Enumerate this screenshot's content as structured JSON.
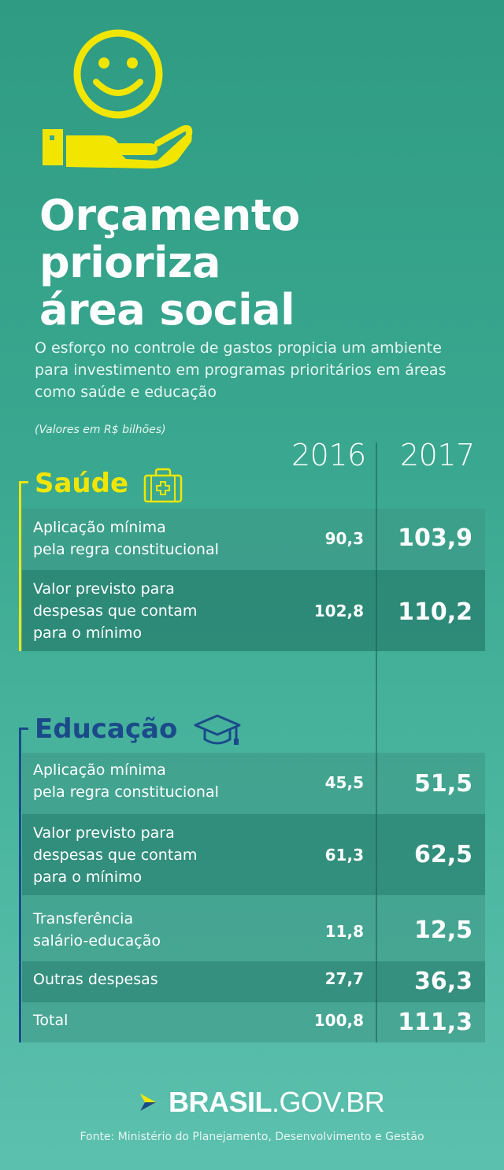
{
  "header": {
    "icon": "smiley-hand-icon",
    "title_lines": [
      "Orçamento",
      "prioriza",
      "área social"
    ],
    "subtitle": "O esforço no controle de gastos propicia um ambiente para investimento em programas prioritários em áreas como saúde e educação",
    "unit_note": "(Valores em R$ bilhões)"
  },
  "columns": {
    "year_a": "2016",
    "year_b": "2017"
  },
  "colors": {
    "saude": "#f2e600",
    "educacao": "#1b4a8a",
    "background": "#3aa890"
  },
  "saude": {
    "title": "Saúde",
    "icon": "first-aid-kit-icon",
    "rows": [
      {
        "label_lines": [
          "Aplicação mínima",
          "pela regra constitucional"
        ],
        "v2016": "90,3",
        "v2017": "103,9"
      },
      {
        "label_lines": [
          "Valor previsto para",
          "despesas que contam",
          "para o mínimo"
        ],
        "v2016": "102,8",
        "v2017": "110,2"
      }
    ]
  },
  "educacao": {
    "title": "Educação",
    "icon": "graduation-cap-icon",
    "rows": [
      {
        "label_lines": [
          "Aplicação mínima",
          "pela regra constitucional"
        ],
        "v2016": "45,5",
        "v2017": "51,5"
      },
      {
        "label_lines": [
          "Valor previsto para",
          "despesas que contam",
          "para o mínimo"
        ],
        "v2016": "61,3",
        "v2017": "62,5"
      },
      {
        "label_lines": [
          "Transferência",
          "salário-educação"
        ],
        "v2016": "11,8",
        "v2017": "12,5"
      },
      {
        "label_lines": [
          "Outras despesas"
        ],
        "v2016": "27,7",
        "v2017": "36,3"
      },
      {
        "label_lines": [
          "Total"
        ],
        "v2016": "100,8",
        "v2017": "111,3"
      }
    ]
  },
  "footer": {
    "logo_bold": "BRASIL",
    "logo_rest": ".GOV.BR",
    "source": "Fonte: Ministério do Planejamento, Desenvolvimento e Gestão"
  }
}
